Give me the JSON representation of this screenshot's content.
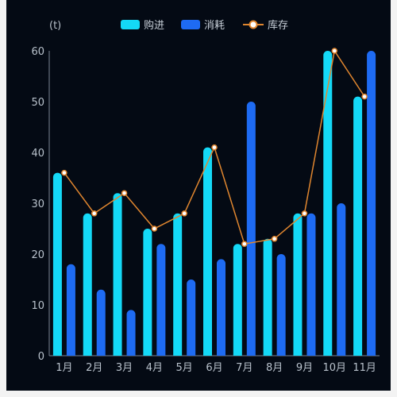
{
  "chart_data": {
    "type": "bar",
    "unit_label": "(t)",
    "categories": [
      "1月",
      "2月",
      "3月",
      "4月",
      "5月",
      "6月",
      "7月",
      "8月",
      "9月",
      "10月",
      "11月"
    ],
    "ylim": [
      0,
      60
    ],
    "yticks": [
      0,
      10,
      20,
      30,
      40,
      50,
      60
    ],
    "series": [
      {
        "name": "购进",
        "type": "bar",
        "color": "#14d9f7",
        "values": [
          36,
          28,
          32,
          25,
          28,
          41,
          22,
          23,
          28,
          60,
          51
        ]
      },
      {
        "name": "消耗",
        "type": "bar",
        "color": "#1e6bf3",
        "values": [
          18,
          13,
          9,
          22,
          15,
          19,
          50,
          20,
          28,
          30,
          60
        ]
      },
      {
        "name": "库存",
        "type": "line",
        "color": "#e0862f",
        "values": [
          36,
          28,
          32,
          25,
          28,
          41,
          22,
          23,
          28,
          60,
          51
        ]
      }
    ],
    "legend_position": "top-center",
    "grid": false
  }
}
